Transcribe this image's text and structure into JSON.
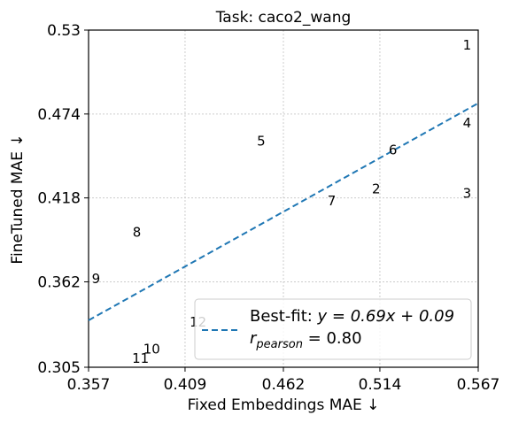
{
  "chart_data": {
    "type": "scatter",
    "title": "Task: caco2_wang",
    "xlabel": "Fixed Embeddings MAE ↓",
    "ylabel": "FineTuned MAE ↓",
    "xlim": [
      0.357,
      0.567
    ],
    "ylim": [
      0.305,
      0.53
    ],
    "xticks": [
      "0.357",
      "0.409",
      "0.462",
      "0.514",
      "0.567"
    ],
    "yticks": [
      "0.305",
      "0.362",
      "0.418",
      "0.474",
      "0.53"
    ],
    "grid": true,
    "points": [
      {
        "label": "1",
        "x": 0.561,
        "y": 0.52
      },
      {
        "label": "2",
        "x": 0.512,
        "y": 0.424
      },
      {
        "label": "3",
        "x": 0.561,
        "y": 0.421
      },
      {
        "label": "4",
        "x": 0.561,
        "y": 0.468
      },
      {
        "label": "5",
        "x": 0.45,
        "y": 0.456
      },
      {
        "label": "6",
        "x": 0.521,
        "y": 0.45
      },
      {
        "label": "7",
        "x": 0.488,
        "y": 0.416
      },
      {
        "label": "8",
        "x": 0.383,
        "y": 0.395
      },
      {
        "label": "9",
        "x": 0.361,
        "y": 0.364
      },
      {
        "label": "10",
        "x": 0.391,
        "y": 0.317
      },
      {
        "label": "11",
        "x": 0.385,
        "y": 0.311
      },
      {
        "label": "12",
        "x": 0.416,
        "y": 0.335
      }
    ],
    "fit": {
      "slope": 0.69,
      "intercept": 0.09,
      "style": "dashed",
      "color": "#1f77b4"
    },
    "legend": {
      "placement": "lower-right",
      "fit_prefix": "Best-fit: ",
      "fit_equation": "y = 0.69x + 0.09",
      "r_symbol": "r",
      "r_subscript": "pearson",
      "r_value": " = 0.80"
    }
  }
}
